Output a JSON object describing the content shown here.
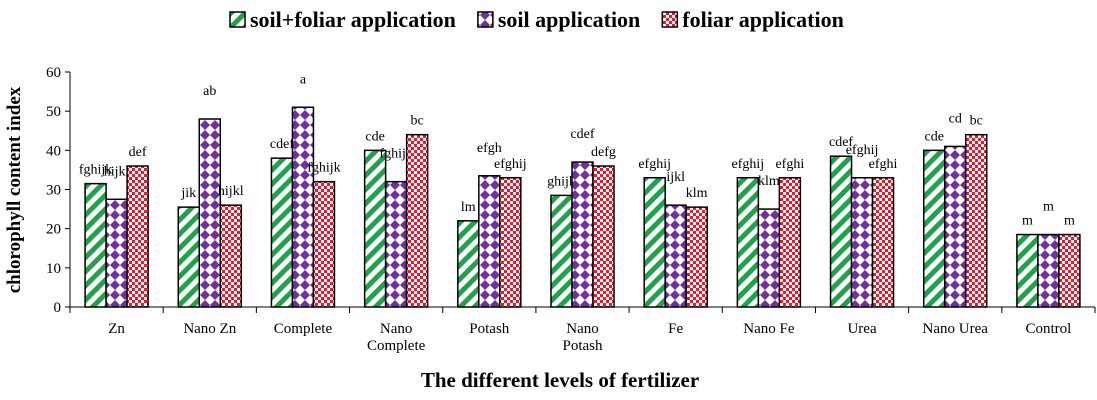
{
  "chart_data": {
    "type": "bar",
    "x_label": "The different levels of fertilizer",
    "y_label": "chlorophyll content index",
    "categories": [
      "Zn",
      "Nano Zn",
      "Complete",
      "Nano Complete",
      "Potash",
      "Nano Potash",
      "Fe",
      "Nano Fe",
      "Urea",
      "Nano Urea",
      "Control"
    ],
    "series": [
      {
        "name": "soil+foliar application",
        "color": "#1fa34a",
        "values": [
          31.5,
          25.5,
          38,
          40,
          22,
          28.5,
          33,
          33,
          38.5,
          40,
          18.5
        ],
        "annotations": [
          "fghijk",
          "jik",
          "cdef",
          "cde",
          "lm",
          "ghijk",
          "efghij",
          "efghij",
          "cdef",
          "cde",
          "m"
        ]
      },
      {
        "name": "soil application",
        "color": "#7030a0",
        "values": [
          27.5,
          48,
          51,
          32,
          33.5,
          37,
          26,
          25,
          33,
          41,
          18.5
        ],
        "annotations": [
          "hijkl",
          "ab",
          "a",
          "fghijk",
          "efgh",
          "cdef",
          "ijkl",
          "klm",
          "efghij",
          "cd",
          "m"
        ]
      },
      {
        "name": "foliar application",
        "color": "#e8192c",
        "values": [
          36,
          26,
          32,
          44,
          33,
          36,
          25.5,
          33,
          33,
          44,
          18.5
        ],
        "annotations": [
          "def",
          "hijkl",
          "fghijk",
          "bc",
          "efghij",
          "defg",
          "klm",
          "efghi",
          "efghi",
          "bc",
          "m"
        ]
      }
    ],
    "ylim": [
      0,
      60
    ],
    "yticks": [
      0,
      10,
      20,
      30,
      40,
      50,
      60
    ],
    "grid": false,
    "legend": "top"
  }
}
